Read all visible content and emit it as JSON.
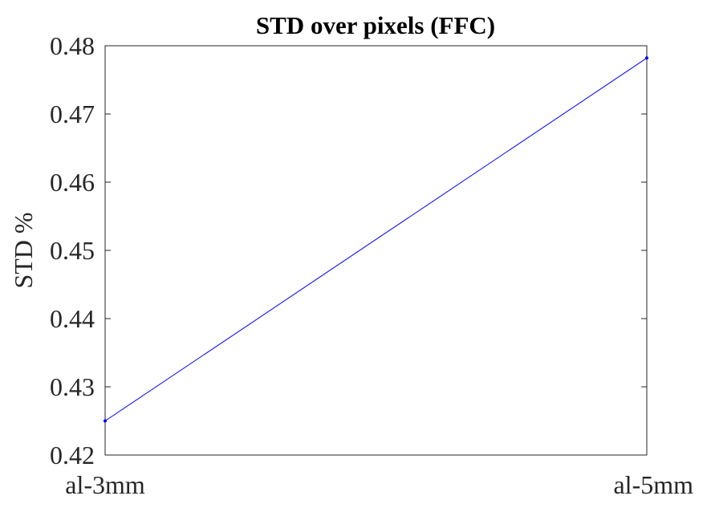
{
  "chart_data": {
    "type": "line",
    "title": "STD over pixels (FFC)",
    "xlabel": "",
    "ylabel": "STD %",
    "categories": [
      "al-3mm",
      "al-5mm"
    ],
    "series": [
      {
        "values": [
          0.425,
          0.4782
        ],
        "color": "#0000ff"
      }
    ],
    "ylim": [
      0.42,
      0.48
    ],
    "yticks": [
      "0.42",
      "0.43",
      "0.44",
      "0.45",
      "0.46",
      "0.47",
      "0.48"
    ],
    "grid": false,
    "legend": "none"
  }
}
